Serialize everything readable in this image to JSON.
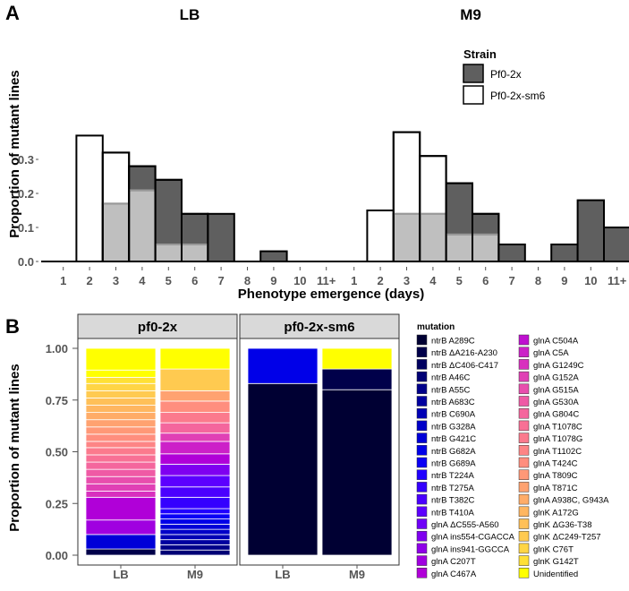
{
  "panel_a": {
    "letter": "A",
    "ylabel": "Proportion of mutant lines",
    "xlabel": "Phenotype emergence (days)",
    "legend": {
      "title": "Strain",
      "items": [
        {
          "label": "Pf0-2x",
          "color": "#5f5f5f"
        },
        {
          "label": "Pf0-2x-sm6",
          "color": "#ffffff"
        }
      ]
    }
  },
  "panel_b": {
    "letter": "B",
    "ylabel": "Proportion of mutant lines",
    "legend_title": "mutation"
  },
  "chart_data": [
    {
      "type": "bar",
      "title": "LB",
      "categories": [
        "1",
        "2",
        "3",
        "4",
        "5",
        "6",
        "7",
        "8",
        "9",
        "10",
        "11+"
      ],
      "ylim": [
        0,
        0.38
      ],
      "yticks": [
        "0.0",
        "0.1",
        "0.2",
        "0.3"
      ],
      "series": [
        {
          "name": "Pf0-2x",
          "values": [
            0,
            0,
            0.17,
            0.28,
            0.24,
            0.14,
            0.14,
            0,
            0.03,
            0,
            0
          ]
        },
        {
          "name": "Pf0-2x-sm6",
          "values": [
            0,
            0.37,
            0.32,
            0.21,
            0.05,
            0.05,
            0,
            0,
            0,
            0,
            0
          ]
        }
      ]
    },
    {
      "type": "bar",
      "title": "M9",
      "categories": [
        "1",
        "2",
        "3",
        "4",
        "5",
        "6",
        "7",
        "8",
        "9",
        "10",
        "11+"
      ],
      "ylim": [
        0,
        0.38
      ],
      "yticks": [
        "0.0",
        "0.1",
        "0.2",
        "0.3"
      ],
      "series": [
        {
          "name": "Pf0-2x",
          "values": [
            0,
            0,
            0.14,
            0.14,
            0.23,
            0.14,
            0.05,
            0,
            0.05,
            0.18,
            0.1
          ]
        },
        {
          "name": "Pf0-2x-sm6",
          "values": [
            0,
            0.15,
            0.38,
            0.31,
            0.08,
            0.08,
            0,
            0,
            0,
            0,
            0
          ]
        }
      ]
    },
    {
      "type": "bar",
      "subtype": "stacked-proportion",
      "facets": [
        "pf0-2x",
        "pf0-2x-sm6"
      ],
      "categories": [
        "LB",
        "M9"
      ],
      "ylim": [
        0,
        1
      ],
      "yticks": [
        "0.00",
        "0.25",
        "0.50",
        "0.75",
        "1.00"
      ],
      "mutations": [
        {
          "name": "ntrB A289C",
          "color": "#000033"
        },
        {
          "name": "ntrB ΔA216-A230",
          "color": "#00004a"
        },
        {
          "name": "ntrB ΔC406-C417",
          "color": "#000060"
        },
        {
          "name": "ntrB A46C",
          "color": "#000075"
        },
        {
          "name": "ntrB A55C",
          "color": "#00008a"
        },
        {
          "name": "ntrB A683C",
          "color": "#0000a0"
        },
        {
          "name": "ntrB C690A",
          "color": "#0000b5"
        },
        {
          "name": "ntrB G328A",
          "color": "#0000c8"
        },
        {
          "name": "ntrB G421C",
          "color": "#0000d8"
        },
        {
          "name": "ntrB G682A",
          "color": "#0000e8"
        },
        {
          "name": "ntrB G689A",
          "color": "#0a00f5"
        },
        {
          "name": "ntrB T224A",
          "color": "#2000ff"
        },
        {
          "name": "ntrB T275A",
          "color": "#3500ff"
        },
        {
          "name": "ntrB T382C",
          "color": "#4a00ff"
        },
        {
          "name": "ntrB T410A",
          "color": "#5c00ff"
        },
        {
          "name": "glnA ΔC555-A560",
          "color": "#6e00f8"
        },
        {
          "name": "glnA ins554-CGACCA",
          "color": "#7f00f0"
        },
        {
          "name": "glnA ins941-GGCCA",
          "color": "#8f00e8"
        },
        {
          "name": "glnA C207T",
          "color": "#a000e0"
        },
        {
          "name": "glnA C467A",
          "color": "#b000d8"
        },
        {
          "name": "glnA C504A",
          "color": "#bf10d0"
        },
        {
          "name": "glnA C5A",
          "color": "#cc20c8"
        },
        {
          "name": "glnA G1249C",
          "color": "#d830be"
        },
        {
          "name": "glnA G152A",
          "color": "#e040b5"
        },
        {
          "name": "glnA G515A",
          "color": "#e84ead"
        },
        {
          "name": "glnA G530A",
          "color": "#ef5aa5"
        },
        {
          "name": "glnA G804C",
          "color": "#f4669d"
        },
        {
          "name": "glnA T1078C",
          "color": "#f87095"
        },
        {
          "name": "glnA T1078G",
          "color": "#fb7a8d"
        },
        {
          "name": "glnA T1102C",
          "color": "#fd8485"
        },
        {
          "name": "glnA T424C",
          "color": "#ff8e7e"
        },
        {
          "name": "glnA T809C",
          "color": "#ff9877"
        },
        {
          "name": "glnA T871C",
          "color": "#ffa270"
        },
        {
          "name": "glnA A938C, G943A",
          "color": "#ffac68"
        },
        {
          "name": "glnK A172G",
          "color": "#ffb660"
        },
        {
          "name": "glnK ΔG36-T38",
          "color": "#ffc058"
        },
        {
          "name": "glnK ΔC249-T257",
          "color": "#ffca50"
        },
        {
          "name": "glnK C76T",
          "color": "#ffd545"
        },
        {
          "name": "glnK G142T",
          "color": "#ffe035"
        },
        {
          "name": "Unidentified",
          "color": "#ffff00"
        }
      ],
      "stacks": {
        "pf0-2x": {
          "LB": {
            "boundaries": [
              0.03,
              0.1,
              0.17,
              0.28,
              0.31,
              0.345,
              0.38,
              0.415,
              0.45,
              0.485,
              0.52,
              0.55,
              0.585,
              0.62,
              0.655,
              0.69,
              0.725,
              0.76,
              0.795,
              0.83,
              0.86,
              0.895
            ],
            "top_color_index": 39
          },
          "M9": {
            "boundaries": [
              0.025,
              0.05,
              0.075,
              0.1,
              0.125,
              0.15,
              0.175,
              0.2,
              0.225,
              0.28,
              0.33,
              0.385,
              0.44,
              0.49,
              0.55,
              0.59,
              0.64,
              0.69,
              0.745,
              0.795,
              0.9
            ],
            "top_color_index": 39
          },
          "LB_colors": [
            1,
            8,
            18,
            19,
            22,
            23,
            24,
            25,
            26,
            27,
            28,
            29,
            30,
            31,
            32,
            33,
            34,
            35,
            36,
            37,
            38,
            39
          ],
          "M9_colors": [
            3,
            4,
            5,
            6,
            7,
            8,
            9,
            10,
            11,
            12,
            13,
            14,
            16,
            19,
            21,
            23,
            26,
            28,
            30,
            32,
            36,
            39
          ]
        },
        "pf0-2x-sm6": {
          "LB": {
            "boundaries": [
              0.83
            ],
            "top_color_index": 9
          },
          "M9": {
            "boundaries": [
              0.8,
              0.9
            ],
            "top_color_index": 39
          },
          "LB_colors": [
            0,
            9
          ],
          "M9_colors": [
            0,
            1,
            39
          ]
        }
      }
    }
  ]
}
